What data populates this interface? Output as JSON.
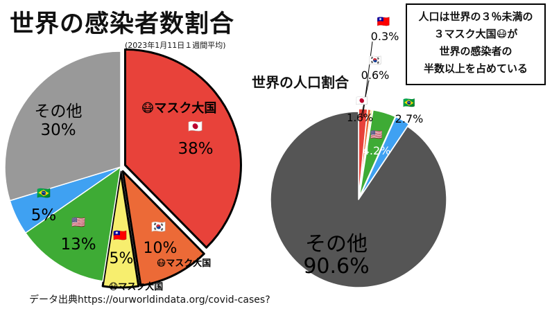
{
  "title": "世界の感染者数割合",
  "subtitle": "(2023年1月11日１週間平均)",
  "pop_title": "世界の人口割合",
  "note_lines": [
    "人口は世界の３％未満の",
    "３マスク大国😷が",
    "世界の感染者の",
    "半数以上を占めている"
  ],
  "source": "データ出典https://ourworldindata.org/covid-cases?",
  "badges": {
    "mask_big": "😷マスク大国",
    "mask_small_kr": "😷マスク大国",
    "mask_small_tw": "😷マスク大国"
  },
  "chart_data": [
    {
      "type": "pie",
      "title": "世界の感染者数割合",
      "slices": [
        {
          "key": "jp",
          "name": "🇯🇵",
          "label": "38%",
          "value": 38,
          "color": "#e8423a"
        },
        {
          "key": "kr",
          "name": "🇰🇷",
          "label": "10%",
          "value": 10,
          "color": "#ec6a37"
        },
        {
          "key": "tw",
          "name": "🇹🇼",
          "label": "5%",
          "value": 5,
          "color": "#f7ee6e"
        },
        {
          "key": "us",
          "name": "🇺🇸",
          "label": "13%",
          "value": 13,
          "color": "#3eab35"
        },
        {
          "key": "br",
          "name": "🇧🇷",
          "label": "5%",
          "value": 5,
          "color": "#3fa1f2"
        },
        {
          "key": "other",
          "name": "その他",
          "label": "30%",
          "value": 30,
          "color": "#999999"
        }
      ]
    },
    {
      "type": "pie",
      "title": "世界の人口割合",
      "slices": [
        {
          "key": "jp",
          "name": "🇯🇵",
          "label": "1.6%",
          "value": 1.6,
          "color": "#e8423a"
        },
        {
          "key": "kr",
          "name": "🇰🇷",
          "label": "0.6%",
          "value": 0.6,
          "color": "#ec6a37"
        },
        {
          "key": "tw",
          "name": "🇹🇼",
          "label": "0.3%",
          "value": 0.3,
          "color": "#f7ee6e"
        },
        {
          "key": "us",
          "name": "🇺🇸",
          "label": "4.2%",
          "value": 4.2,
          "color": "#3eab35"
        },
        {
          "key": "br",
          "name": "🇧🇷",
          "label": "2.7%",
          "value": 2.7,
          "color": "#3fa1f2"
        },
        {
          "key": "other",
          "name": "その他",
          "label": "90.6%",
          "value": 90.6,
          "color": "#555555"
        }
      ]
    }
  ]
}
